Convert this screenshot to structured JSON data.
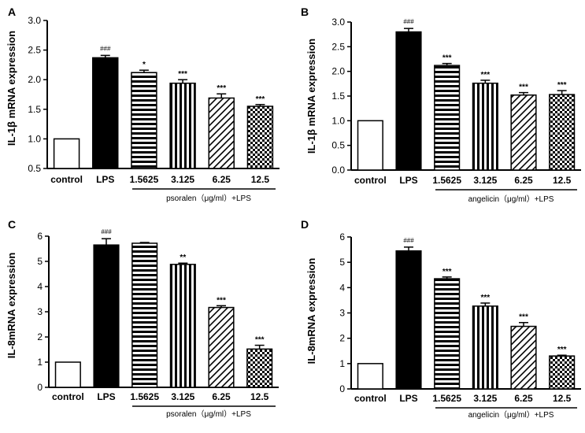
{
  "chart_data": [
    {
      "type": "bar",
      "panel": "A",
      "ylabel": "IL-1β mRNA expression",
      "ylim": [
        0.5,
        3.0
      ],
      "yticks": [
        "0.5",
        "1.0",
        "1.5",
        "2.0",
        "2.5",
        "3.0"
      ],
      "categories": [
        "control",
        "LPS",
        "1.5625",
        "3.125",
        "6.25",
        "12.5"
      ],
      "values": [
        1.0,
        2.37,
        2.12,
        1.94,
        1.69,
        1.55
      ],
      "errors": [
        0.0,
        0.04,
        0.04,
        0.06,
        0.07,
        0.03
      ],
      "significance": [
        "",
        "###",
        "*",
        "***",
        "***",
        "***"
      ],
      "treatment_label": "psoralen（μg/ml）+LPS"
    },
    {
      "type": "bar",
      "panel": "B",
      "ylabel": "IL-1β mRNA expression",
      "ylim": [
        0.0,
        3.0
      ],
      "yticks": [
        "0.0",
        "0.5",
        "1.0",
        "1.5",
        "2.0",
        "2.5",
        "3.0"
      ],
      "categories": [
        "control",
        "LPS",
        "1.5625",
        "3.125",
        "6.25",
        "12.5"
      ],
      "values": [
        1.0,
        2.8,
        2.12,
        1.76,
        1.52,
        1.53
      ],
      "errors": [
        0.0,
        0.07,
        0.04,
        0.06,
        0.05,
        0.08
      ],
      "significance": [
        "",
        "###",
        "***",
        "***",
        "***",
        "***"
      ],
      "treatment_label": "angelicin（μg/ml）+LPS"
    },
    {
      "type": "bar",
      "panel": "C",
      "ylabel": "IL-8mRNA expression",
      "ylim": [
        0,
        6
      ],
      "yticks": [
        "0",
        "1",
        "2",
        "3",
        "4",
        "5",
        "6"
      ],
      "categories": [
        "control",
        "LPS",
        "1.5625",
        "3.125",
        "6.25",
        "12.5"
      ],
      "values": [
        1.0,
        5.65,
        5.72,
        4.88,
        3.17,
        1.52
      ],
      "errors": [
        0.0,
        0.25,
        0.03,
        0.05,
        0.07,
        0.15
      ],
      "significance": [
        "",
        "###",
        "",
        "**",
        "***",
        "***"
      ],
      "treatment_label": "psoralen（μg/ml）+LPS"
    },
    {
      "type": "bar",
      "panel": "D",
      "ylabel": "IL-8mRNA expression",
      "ylim": [
        0,
        6
      ],
      "yticks": [
        "0",
        "1",
        "2",
        "3",
        "4",
        "5",
        "6"
      ],
      "categories": [
        "control",
        "LPS",
        "1.5625",
        "3.125",
        "6.25",
        "12.5"
      ],
      "values": [
        1.0,
        5.45,
        4.35,
        3.27,
        2.47,
        1.3
      ],
      "errors": [
        0.0,
        0.15,
        0.07,
        0.12,
        0.15,
        0.03
      ],
      "significance": [
        "",
        "###",
        "***",
        "***",
        "***",
        "***"
      ],
      "treatment_label": "angelicin（μg/ml）+LPS"
    }
  ]
}
